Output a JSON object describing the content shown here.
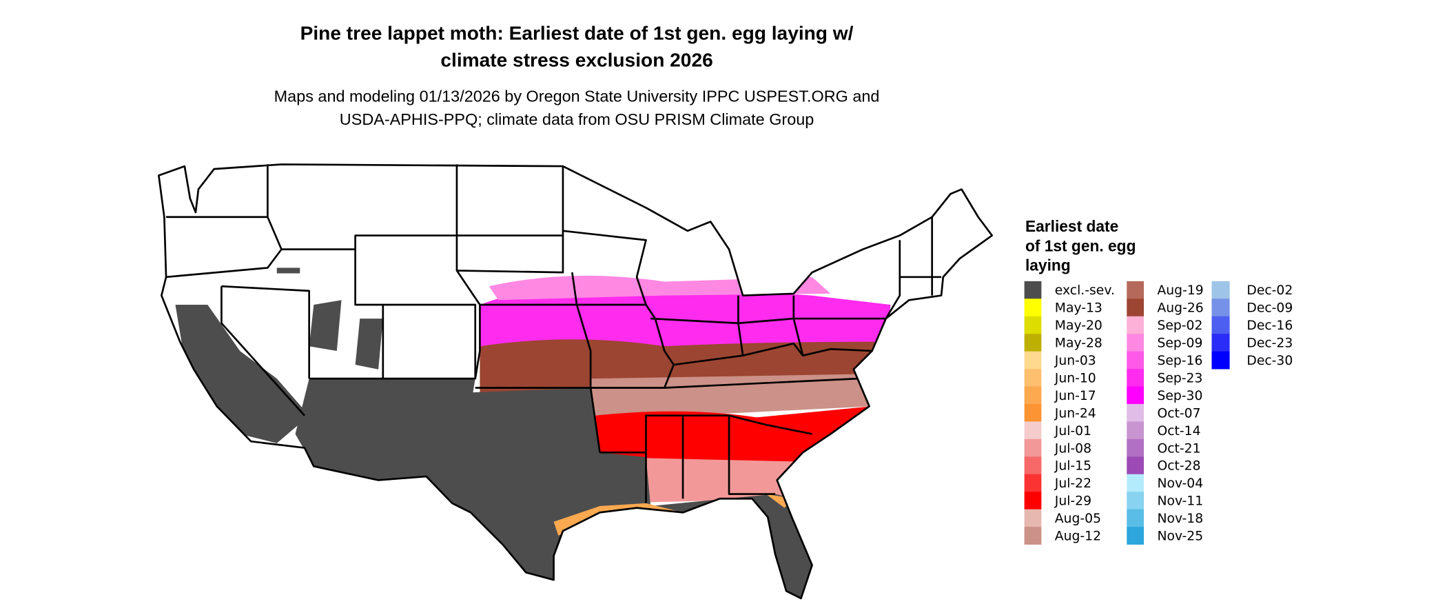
{
  "title": {
    "line1": "Pine tree lappet moth: Earliest date of 1st gen. egg laying w/",
    "line2": "climate stress exclusion 2026"
  },
  "subtitle": {
    "line1": "Maps and modeling 01/13/2026 by Oregon State University IPPC USPEST.ORG and",
    "line2": "USDA-APHIS-PPQ; climate data from OSU PRISM Climate Group"
  },
  "legend": {
    "title_lines": [
      "Earliest date",
      "of 1st gen. egg",
      "laying"
    ],
    "columns": [
      [
        {
          "label": "excl.-sev.",
          "color": "#4d4d4d"
        },
        {
          "label": "May-13",
          "color": "#ffff00"
        },
        {
          "label": "May-20",
          "color": "#dddd00"
        },
        {
          "label": "May-28",
          "color": "#bdb000"
        },
        {
          "label": "Jun-03",
          "color": "#fed98e"
        },
        {
          "label": "Jun-10",
          "color": "#fec06e"
        },
        {
          "label": "Jun-17",
          "color": "#fca950"
        },
        {
          "label": "Jun-24",
          "color": "#fd9433"
        },
        {
          "label": "Jul-01",
          "color": "#f4cccc"
        },
        {
          "label": "Jul-08",
          "color": "#f29898"
        },
        {
          "label": "Jul-15",
          "color": "#f76868"
        },
        {
          "label": "Jul-22",
          "color": "#fb3333"
        },
        {
          "label": "Jul-29",
          "color": "#ff0000"
        },
        {
          "label": "Aug-05",
          "color": "#e6b8b0"
        },
        {
          "label": "Aug-12",
          "color": "#cc9188"
        }
      ],
      [
        {
          "label": "Aug-19",
          "color": "#b5695a"
        },
        {
          "label": "Aug-26",
          "color": "#9c4532"
        },
        {
          "label": "Sep-02",
          "color": "#fdb0d8"
        },
        {
          "label": "Sep-09",
          "color": "#ff88e3"
        },
        {
          "label": "Sep-16",
          "color": "#ff59e8"
        },
        {
          "label": "Sep-23",
          "color": "#ff2bee"
        },
        {
          "label": "Sep-30",
          "color": "#ff00ff"
        },
        {
          "label": "Oct-07",
          "color": "#e0bde6"
        },
        {
          "label": "Oct-14",
          "color": "#c895d0"
        },
        {
          "label": "Oct-21",
          "color": "#b170c3"
        },
        {
          "label": "Oct-28",
          "color": "#9c4ab5"
        },
        {
          "label": "Nov-04",
          "color": "#b3ebfd"
        },
        {
          "label": "Nov-11",
          "color": "#87d3f0"
        },
        {
          "label": "Nov-18",
          "color": "#5abde6"
        },
        {
          "label": "Nov-25",
          "color": "#2ca6dc"
        }
      ],
      [
        {
          "label": "Dec-02",
          "color": "#9ec4e8"
        },
        {
          "label": "Dec-09",
          "color": "#7591e8"
        },
        {
          "label": "Dec-16",
          "color": "#4d5ff0"
        },
        {
          "label": "Dec-23",
          "color": "#2a2df8"
        },
        {
          "label": "Dec-30",
          "color": "#0000ff"
        }
      ]
    ]
  },
  "map_colors": {
    "excluded": "#4d4d4d",
    "background": "#ffffff",
    "borders": "#000000"
  }
}
